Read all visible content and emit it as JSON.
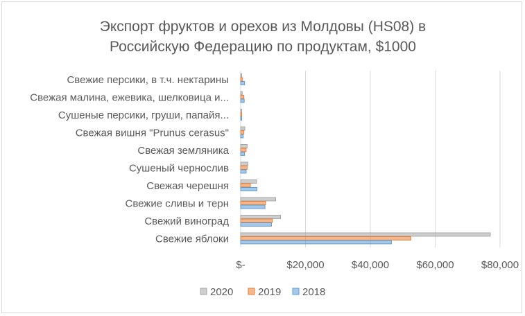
{
  "chart_data": {
    "type": "bar",
    "orientation": "horizontal",
    "title": "Экспорт фруктов и орехов из Молдовы (HS08) в Российскую Федерацию по продуктам, $1000",
    "title_lines": [
      "Экспорт фруктов и орехов из Молдовы (HS08) в",
      "Российскую Федерацию по продуктам, $1000"
    ],
    "categories": [
      "Свежие персики, в т.ч. нектарины",
      "Свежая малина, ежевика, шелковица и...",
      "Сушеные персики, груши, папайя...",
      "Свежая вишня \"Prunus cerasus\"",
      "Свежая земляника",
      "Сушеный чернослив",
      "Свежая черешня",
      "Свежие сливы и терн",
      "Свежий виноград",
      "Свежие яблоки"
    ],
    "series": [
      {
        "name": "2020",
        "color": "#a5a5a5",
        "values": [
          300,
          500,
          100,
          1300,
          2000,
          2200,
          4900,
          10800,
          12300,
          77000
        ]
      },
      {
        "name": "2019",
        "color": "#ed7d31",
        "values": [
          600,
          1000,
          100,
          1000,
          1700,
          2000,
          3000,
          7700,
          9800,
          52500
        ]
      },
      {
        "name": "2018",
        "color": "#5b9bd5",
        "values": [
          1200,
          1100,
          100,
          800,
          1200,
          1700,
          5000,
          7500,
          9500,
          46500
        ]
      }
    ],
    "x_ticks": [
      "$-",
      "$20,000",
      "$40,000",
      "$60,000",
      "$80,000"
    ],
    "xlim": [
      0,
      80000
    ],
    "grid": true,
    "legend_position": "bottom",
    "legend_order": [
      "2020",
      "2019",
      "2018"
    ]
  }
}
